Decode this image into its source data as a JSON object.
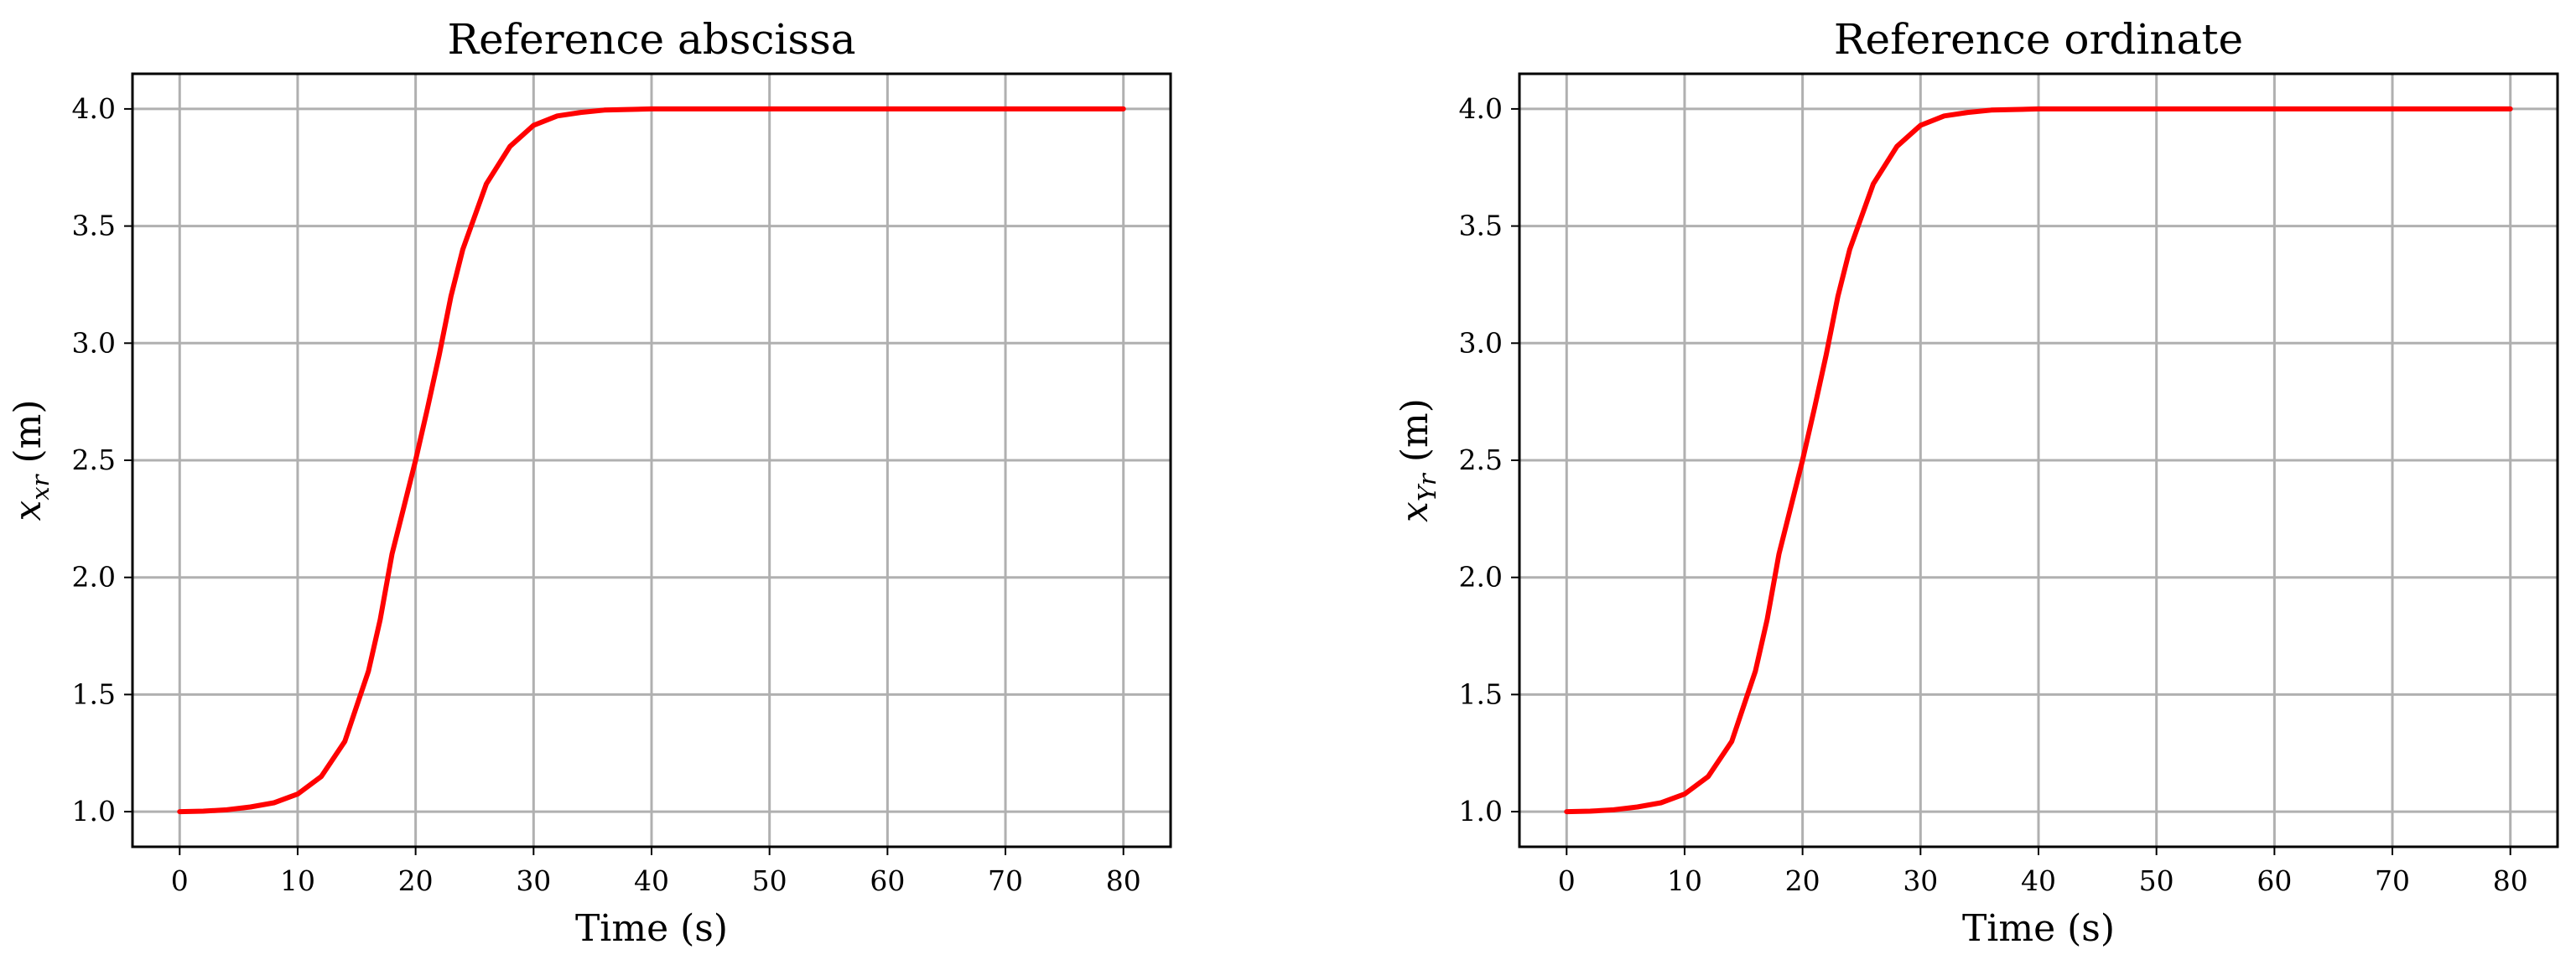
{
  "chart_data": [
    {
      "type": "line",
      "title": "Reference abscissa",
      "xlabel": "Time (s)",
      "ylabel": {
        "symbol": "x",
        "subscript": "xr",
        "unit": " (m)"
      },
      "xlim": [
        -4,
        84
      ],
      "ylim": [
        0.85,
        4.15
      ],
      "xticks": [
        0,
        10,
        20,
        30,
        40,
        50,
        60,
        70,
        80
      ],
      "yticks": [
        "1.0",
        "1.5",
        "2.0",
        "2.5",
        "3.0",
        "3.5",
        "4.0"
      ],
      "grid": true,
      "colors": {
        "series": "#ff0000"
      },
      "series": [
        {
          "x": [
            0,
            2,
            4,
            6,
            8,
            10,
            12,
            14,
            16,
            17,
            18,
            19,
            20,
            21,
            22,
            23,
            24,
            26,
            28,
            30,
            32,
            34,
            36,
            40,
            50,
            60,
            70,
            80
          ],
          "values": [
            1.0,
            1.002,
            1.008,
            1.02,
            1.038,
            1.075,
            1.15,
            1.3,
            1.6,
            1.82,
            2.1,
            2.3,
            2.5,
            2.72,
            2.95,
            3.2,
            3.4,
            3.68,
            3.84,
            3.93,
            3.97,
            3.985,
            3.995,
            4.0,
            4.0,
            4.0,
            4.0,
            4.0
          ]
        }
      ]
    },
    {
      "type": "line",
      "title": "Reference ordinate",
      "xlabel": "Time (s)",
      "ylabel": {
        "symbol": "x",
        "subscript": "Yr",
        "unit": " (m)"
      },
      "xlim": [
        -4,
        84
      ],
      "ylim": [
        0.85,
        4.15
      ],
      "xticks": [
        0,
        10,
        20,
        30,
        40,
        50,
        60,
        70,
        80
      ],
      "yticks": [
        "1.0",
        "1.5",
        "2.0",
        "2.5",
        "3.0",
        "3.5",
        "4.0"
      ],
      "grid": true,
      "colors": {
        "series": "#ff0000"
      },
      "series": [
        {
          "x": [
            0,
            2,
            4,
            6,
            8,
            10,
            12,
            14,
            16,
            17,
            18,
            19,
            20,
            21,
            22,
            23,
            24,
            26,
            28,
            30,
            32,
            34,
            36,
            40,
            50,
            60,
            70,
            80
          ],
          "values": [
            1.0,
            1.002,
            1.008,
            1.02,
            1.038,
            1.075,
            1.15,
            1.3,
            1.6,
            1.82,
            2.1,
            2.3,
            2.5,
            2.72,
            2.95,
            3.2,
            3.4,
            3.68,
            3.84,
            3.93,
            3.97,
            3.985,
            3.995,
            4.0,
            4.0,
            4.0,
            4.0,
            4.0
          ]
        }
      ]
    }
  ]
}
